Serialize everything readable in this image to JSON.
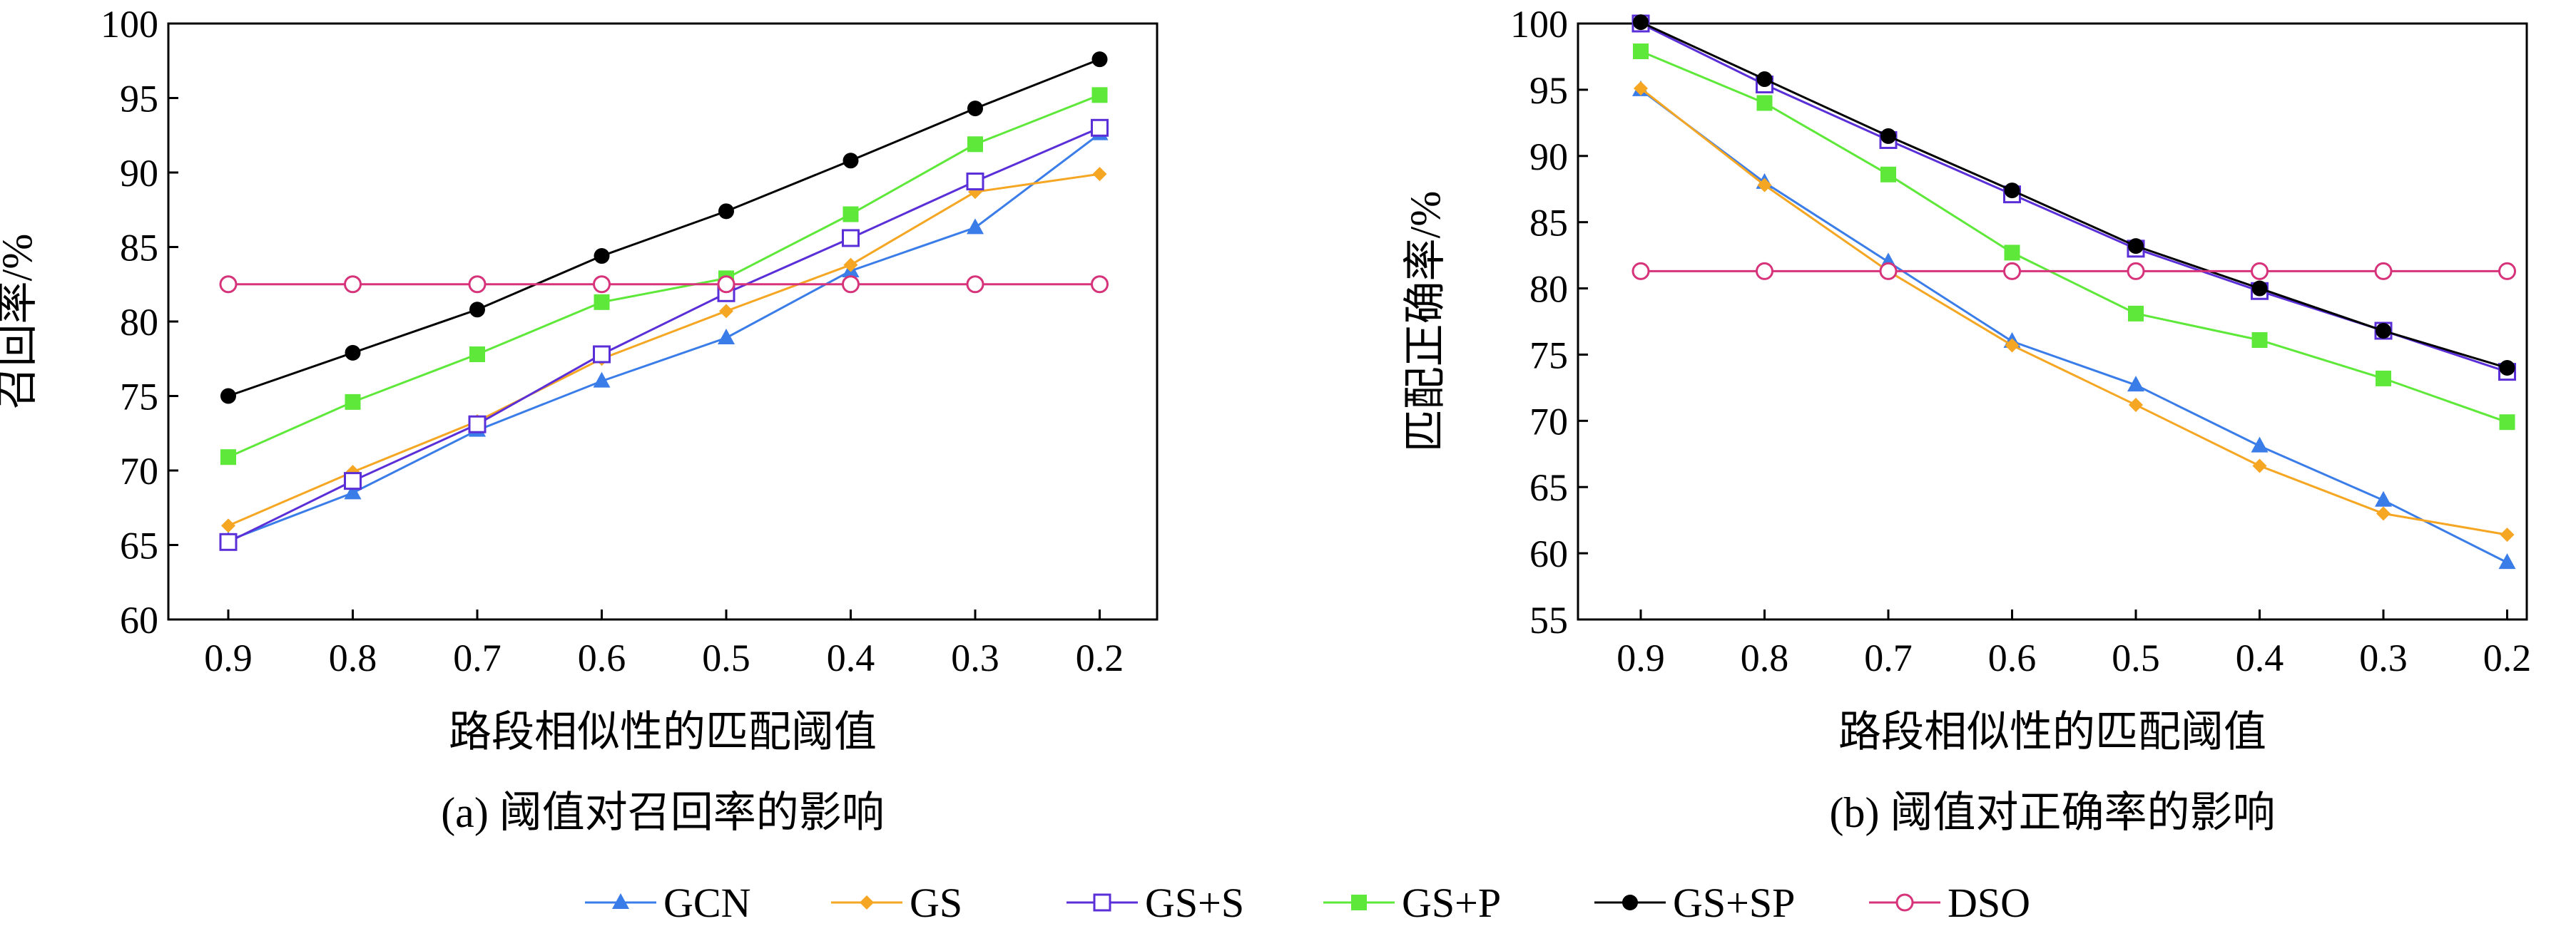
{
  "legend": [
    {
      "name": "GCN",
      "color": "#3B7DE8",
      "marker": "triangle"
    },
    {
      "name": "GS",
      "color": "#F5A623",
      "marker": "diamond"
    },
    {
      "name": "GS+S",
      "color": "#5B2FD8",
      "marker": "open-square"
    },
    {
      "name": "GS+P",
      "color": "#5EE83A",
      "marker": "square"
    },
    {
      "name": "GS+SP",
      "color": "#000000",
      "marker": "circle"
    },
    {
      "name": "DSO",
      "color": "#D6337A",
      "marker": "open-circle"
    }
  ],
  "chart_data": [
    {
      "type": "line",
      "id": "a",
      "caption": "(a) 阈值对召回率的影响",
      "xlabel": "路段相似性的匹配阈值",
      "ylabel": "召回率/%",
      "categories": [
        "0.9",
        "0.8",
        "0.7",
        "0.6",
        "0.5",
        "0.4",
        "0.3",
        "0.2"
      ],
      "ylim": [
        60,
        100
      ],
      "yticks": [
        60,
        65,
        70,
        75,
        80,
        85,
        90,
        95,
        100
      ],
      "series": [
        {
          "name": "GCN",
          "values": [
            65.3,
            68.5,
            72.7,
            76.0,
            78.9,
            83.4,
            86.3,
            92.6
          ]
        },
        {
          "name": "GS",
          "values": [
            66.3,
            69.9,
            73.3,
            77.5,
            80.7,
            83.8,
            88.7,
            89.9
          ]
        },
        {
          "name": "GS+S",
          "values": [
            65.2,
            69.3,
            73.1,
            77.8,
            81.9,
            85.6,
            89.4,
            93.0
          ]
        },
        {
          "name": "GS+P",
          "values": [
            70.9,
            74.6,
            77.8,
            81.3,
            82.9,
            87.2,
            91.9,
            95.2
          ]
        },
        {
          "name": "GS+SP",
          "values": [
            75.0,
            77.9,
            80.8,
            84.4,
            87.4,
            90.8,
            94.3,
            97.6
          ]
        },
        {
          "name": "DSO",
          "values": [
            82.5,
            82.5,
            82.5,
            82.5,
            82.5,
            82.5,
            82.5,
            82.5
          ]
        }
      ]
    },
    {
      "type": "line",
      "id": "b",
      "caption": "(b) 阈值对正确率的影响",
      "xlabel": "路段相似性的匹配阈值",
      "ylabel": "匹配正确率/%",
      "categories": [
        "0.9",
        "0.8",
        "0.7",
        "0.6",
        "0.5",
        "0.4",
        "0.3",
        "0.2"
      ],
      "ylim": [
        55,
        100
      ],
      "yticks": [
        55,
        60,
        65,
        70,
        75,
        80,
        85,
        90,
        95,
        100
      ],
      "series": [
        {
          "name": "GCN",
          "values": [
            95.0,
            88.0,
            82.0,
            76.0,
            72.7,
            68.1,
            64.0,
            59.3
          ]
        },
        {
          "name": "GS",
          "values": [
            95.1,
            87.8,
            81.3,
            75.7,
            71.2,
            66.6,
            63.0,
            61.4
          ]
        },
        {
          "name": "GS+S",
          "values": [
            100.0,
            95.4,
            91.2,
            87.1,
            83.0,
            79.8,
            76.8,
            73.7
          ]
        },
        {
          "name": "GS+P",
          "values": [
            97.9,
            94.0,
            88.6,
            82.7,
            78.1,
            76.1,
            73.2,
            69.9
          ]
        },
        {
          "name": "GS+SP",
          "values": [
            100.1,
            95.8,
            91.5,
            87.4,
            83.2,
            80.0,
            76.8,
            74.0
          ]
        },
        {
          "name": "DSO",
          "values": [
            81.3,
            81.3,
            81.3,
            81.3,
            81.3,
            81.3,
            81.3,
            81.3
          ]
        }
      ]
    }
  ]
}
